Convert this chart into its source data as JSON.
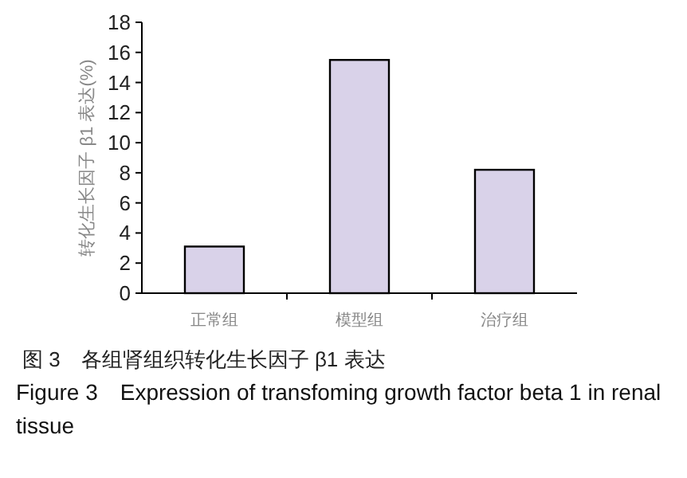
{
  "chart_data": {
    "type": "bar",
    "title": "图 3　各组肾组织转化生长因子 β1 表达",
    "subtitle": "Figure 3　Expression of transfoming growth factor beta 1 in renal tissue",
    "ylabel": "转化生长因子 β1 表达(%)",
    "categories": [
      "正常组",
      "模型组",
      "治疗组"
    ],
    "values": [
      3.1,
      15.5,
      8.2
    ],
    "color": "#d9d2e9",
    "ylim": [
      0,
      18
    ],
    "yticks": [
      0,
      2,
      4,
      6,
      8,
      10,
      12,
      14,
      16,
      18
    ]
  }
}
